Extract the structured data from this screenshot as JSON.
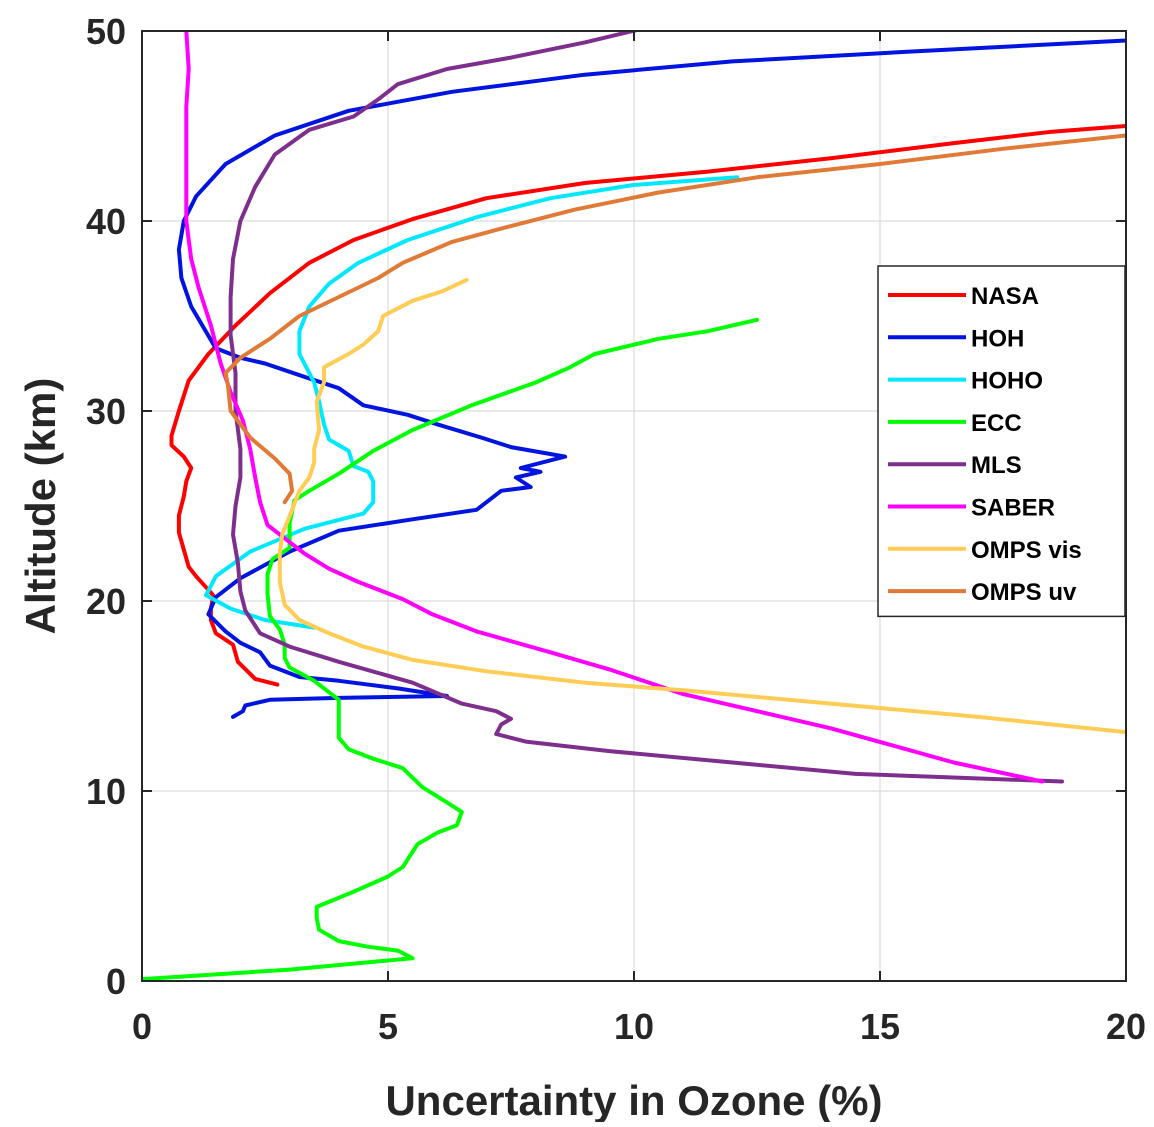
{
  "chart_data": {
    "type": "line",
    "xlabel": "Uncertainty in Ozone (%)",
    "ylabel": "Altitude (km)",
    "xlim": [
      0,
      20
    ],
    "ylim": [
      0,
      50
    ],
    "xticks": [
      0,
      5,
      10,
      15,
      20
    ],
    "yticks": [
      0,
      10,
      20,
      30,
      40,
      50
    ],
    "grid": true,
    "legend_position": "right",
    "series": [
      {
        "name": "NASA",
        "color": "#ff0000",
        "points": [
          [
            2.75,
            15.6
          ],
          [
            2.3,
            15.9
          ],
          [
            1.95,
            16.8
          ],
          [
            1.85,
            17.7
          ],
          [
            1.5,
            18.3
          ],
          [
            1.4,
            19.0
          ],
          [
            1.4,
            19.6
          ],
          [
            1.45,
            20.3
          ],
          [
            1.1,
            21.3
          ],
          [
            0.95,
            21.8
          ],
          [
            0.85,
            22.7
          ],
          [
            0.75,
            23.6
          ],
          [
            0.75,
            24.5
          ],
          [
            0.85,
            25.5
          ],
          [
            0.9,
            26.3
          ],
          [
            1.0,
            27.0
          ],
          [
            0.85,
            27.6
          ],
          [
            0.6,
            28.2
          ],
          [
            0.6,
            28.7
          ],
          [
            0.75,
            30.0
          ],
          [
            0.95,
            31.6
          ],
          [
            1.35,
            33.0
          ],
          [
            1.9,
            34.5
          ],
          [
            2.6,
            36.2
          ],
          [
            3.4,
            37.8
          ],
          [
            4.3,
            39.0
          ],
          [
            5.5,
            40.1
          ],
          [
            7.0,
            41.2
          ],
          [
            9.0,
            42.0
          ],
          [
            11.5,
            42.6
          ],
          [
            14.0,
            43.3
          ],
          [
            16.5,
            44.1
          ],
          [
            18.5,
            44.7
          ],
          [
            20.0,
            45.0
          ]
        ]
      },
      {
        "name": "HOH",
        "color": "#0014e0",
        "points": [
          [
            1.85,
            13.9
          ],
          [
            2.05,
            14.2
          ],
          [
            2.1,
            14.5
          ],
          [
            2.6,
            14.8
          ],
          [
            4.0,
            14.9
          ],
          [
            6.2,
            15.0
          ],
          [
            5.2,
            15.4
          ],
          [
            4.0,
            15.8
          ],
          [
            3.2,
            16.0
          ],
          [
            2.6,
            16.6
          ],
          [
            2.4,
            17.3
          ],
          [
            2.0,
            17.8
          ],
          [
            1.7,
            18.4
          ],
          [
            1.35,
            19.3
          ],
          [
            1.5,
            20.2
          ],
          [
            2.0,
            21.2
          ],
          [
            3.0,
            22.6
          ],
          [
            4.0,
            23.7
          ],
          [
            5.5,
            24.3
          ],
          [
            6.8,
            24.8
          ],
          [
            7.3,
            25.8
          ],
          [
            7.9,
            26.0
          ],
          [
            7.6,
            26.5
          ],
          [
            8.1,
            26.8
          ],
          [
            7.7,
            27.0
          ],
          [
            8.6,
            27.6
          ],
          [
            7.5,
            28.1
          ],
          [
            6.9,
            28.6
          ],
          [
            6.0,
            29.3
          ],
          [
            5.4,
            29.8
          ],
          [
            4.5,
            30.3
          ],
          [
            4.0,
            31.2
          ],
          [
            3.3,
            31.8
          ],
          [
            2.5,
            32.5
          ],
          [
            2.0,
            32.8
          ],
          [
            1.5,
            33.3
          ],
          [
            1.0,
            35.5
          ],
          [
            0.8,
            37.0
          ],
          [
            0.75,
            38.5
          ],
          [
            0.85,
            40.0
          ],
          [
            1.1,
            41.3
          ],
          [
            1.7,
            43.0
          ],
          [
            2.7,
            44.5
          ],
          [
            4.2,
            45.8
          ],
          [
            6.3,
            46.8
          ],
          [
            9.0,
            47.7
          ],
          [
            12.0,
            48.4
          ],
          [
            15.5,
            48.9
          ],
          [
            20.0,
            49.5
          ]
        ]
      },
      {
        "name": "HOHO",
        "color": "#00e8ff",
        "points": [
          [
            3.5,
            18.6
          ],
          [
            2.5,
            19.0
          ],
          [
            1.8,
            19.6
          ],
          [
            1.3,
            20.3
          ],
          [
            1.5,
            21.3
          ],
          [
            2.2,
            22.6
          ],
          [
            3.3,
            23.8
          ],
          [
            4.5,
            24.6
          ],
          [
            4.7,
            25.2
          ],
          [
            4.7,
            26.3
          ],
          [
            4.6,
            26.8
          ],
          [
            4.3,
            27.1
          ],
          [
            4.2,
            27.9
          ],
          [
            3.8,
            28.5
          ],
          [
            3.7,
            29.3
          ],
          [
            3.6,
            30.5
          ],
          [
            3.5,
            31.5
          ],
          [
            3.2,
            33.0
          ],
          [
            3.2,
            34.2
          ],
          [
            3.4,
            35.5
          ],
          [
            3.8,
            36.7
          ],
          [
            4.4,
            37.8
          ],
          [
            5.4,
            39.0
          ],
          [
            6.8,
            40.2
          ],
          [
            8.3,
            41.2
          ],
          [
            10.0,
            41.9
          ],
          [
            12.1,
            42.3
          ]
        ]
      },
      {
        "name": "ECC",
        "color": "#00ff00",
        "points": [
          [
            0.0,
            0.1
          ],
          [
            3.0,
            0.6
          ],
          [
            5.5,
            1.2
          ],
          [
            5.2,
            1.6
          ],
          [
            4.6,
            1.8
          ],
          [
            4.0,
            2.1
          ],
          [
            3.6,
            2.7
          ],
          [
            3.55,
            3.3
          ],
          [
            3.55,
            3.9
          ],
          [
            4.3,
            4.7
          ],
          [
            5.0,
            5.5
          ],
          [
            5.3,
            6.0
          ],
          [
            5.6,
            7.2
          ],
          [
            6.0,
            7.8
          ],
          [
            6.4,
            8.2
          ],
          [
            6.5,
            8.9
          ],
          [
            6.2,
            9.4
          ],
          [
            5.7,
            10.2
          ],
          [
            5.3,
            11.2
          ],
          [
            4.7,
            11.7
          ],
          [
            4.2,
            12.2
          ],
          [
            4.0,
            12.8
          ],
          [
            4.0,
            13.3
          ],
          [
            4.0,
            14.8
          ],
          [
            3.5,
            15.8
          ],
          [
            3.0,
            16.5
          ],
          [
            2.9,
            17.0
          ],
          [
            2.9,
            17.7
          ],
          [
            2.8,
            18.5
          ],
          [
            2.6,
            19.2
          ],
          [
            2.55,
            20.4
          ],
          [
            2.55,
            21.4
          ],
          [
            2.65,
            22.2
          ],
          [
            3.0,
            22.8
          ],
          [
            3.0,
            24.1
          ],
          [
            3.1,
            25.3
          ],
          [
            3.4,
            25.8
          ],
          [
            4.0,
            26.7
          ],
          [
            4.7,
            27.9
          ],
          [
            5.5,
            29.0
          ],
          [
            6.7,
            30.3
          ],
          [
            8.0,
            31.5
          ],
          [
            8.7,
            32.3
          ],
          [
            9.2,
            33.0
          ],
          [
            10.5,
            33.8
          ],
          [
            11.5,
            34.2
          ],
          [
            12.5,
            34.8
          ]
        ]
      },
      {
        "name": "MLS",
        "color": "#7e2f8e",
        "points": [
          [
            18.7,
            10.5
          ],
          [
            14.5,
            10.9
          ],
          [
            12.0,
            11.5
          ],
          [
            9.5,
            12.1
          ],
          [
            7.8,
            12.6
          ],
          [
            7.2,
            13.0
          ],
          [
            7.3,
            13.5
          ],
          [
            7.5,
            13.8
          ],
          [
            7.2,
            14.2
          ],
          [
            6.5,
            14.6
          ],
          [
            5.5,
            15.7
          ],
          [
            4.0,
            16.8
          ],
          [
            3.0,
            17.6
          ],
          [
            2.4,
            18.3
          ],
          [
            2.1,
            19.5
          ],
          [
            2.0,
            20.5
          ],
          [
            1.95,
            22.0
          ],
          [
            1.85,
            23.5
          ],
          [
            1.9,
            25.0
          ],
          [
            2.0,
            26.5
          ],
          [
            2.0,
            28.0
          ],
          [
            1.9,
            30.0
          ],
          [
            1.9,
            32.0
          ],
          [
            1.8,
            34.0
          ],
          [
            1.8,
            36.0
          ],
          [
            1.85,
            38.0
          ],
          [
            2.0,
            40.0
          ],
          [
            2.3,
            41.8
          ],
          [
            2.7,
            43.5
          ],
          [
            3.4,
            44.8
          ],
          [
            4.3,
            45.5
          ],
          [
            4.8,
            46.4
          ],
          [
            5.2,
            47.2
          ],
          [
            6.2,
            48.0
          ],
          [
            7.5,
            48.6
          ],
          [
            9.0,
            49.4
          ],
          [
            10.3,
            50.2
          ]
        ]
      },
      {
        "name": "SABER",
        "color": "#ff00ff",
        "points": [
          [
            18.3,
            10.5
          ],
          [
            16.5,
            11.5
          ],
          [
            14.0,
            13.3
          ],
          [
            11.0,
            15.1
          ],
          [
            9.5,
            16.4
          ],
          [
            8.3,
            17.3
          ],
          [
            6.8,
            18.4
          ],
          [
            5.9,
            19.3
          ],
          [
            5.3,
            20.1
          ],
          [
            4.4,
            21.0
          ],
          [
            3.8,
            21.7
          ],
          [
            3.3,
            22.5
          ],
          [
            2.9,
            23.3
          ],
          [
            2.55,
            24.0
          ],
          [
            2.4,
            25.2
          ],
          [
            2.3,
            26.5
          ],
          [
            2.2,
            28.0
          ],
          [
            2.05,
            29.5
          ],
          [
            1.8,
            31.0
          ],
          [
            1.6,
            32.5
          ],
          [
            1.4,
            34.5
          ],
          [
            1.15,
            36.5
          ],
          [
            1.0,
            38.0
          ],
          [
            0.9,
            40.0
          ],
          [
            0.9,
            42.0
          ],
          [
            0.9,
            44.0
          ],
          [
            0.9,
            46.0
          ],
          [
            0.95,
            48.0
          ],
          [
            0.9,
            50.0
          ]
        ]
      },
      {
        "name": "OMPS vis",
        "color": "#ffcc55",
        "points": [
          [
            20.0,
            13.1
          ],
          [
            17.0,
            13.9
          ],
          [
            14.0,
            14.6
          ],
          [
            11.0,
            15.3
          ],
          [
            9.0,
            15.7
          ],
          [
            7.0,
            16.3
          ],
          [
            5.5,
            16.9
          ],
          [
            4.5,
            17.6
          ],
          [
            3.8,
            18.3
          ],
          [
            3.2,
            19.0
          ],
          [
            2.9,
            19.8
          ],
          [
            2.8,
            21.0
          ],
          [
            2.8,
            22.5
          ],
          [
            2.85,
            23.5
          ],
          [
            3.05,
            24.8
          ],
          [
            3.2,
            25.8
          ],
          [
            3.4,
            26.5
          ],
          [
            3.5,
            27.3
          ],
          [
            3.5,
            28.0
          ],
          [
            3.6,
            29.0
          ],
          [
            3.55,
            30.5
          ],
          [
            3.7,
            31.5
          ],
          [
            3.7,
            32.3
          ],
          [
            4.2,
            33.0
          ],
          [
            4.5,
            33.5
          ],
          [
            4.8,
            34.2
          ],
          [
            4.9,
            35.0
          ],
          [
            5.5,
            35.8
          ],
          [
            6.1,
            36.3
          ],
          [
            6.6,
            36.9
          ]
        ]
      },
      {
        "name": "OMPS uv",
        "color": "#e07a36",
        "points": [
          [
            2.9,
            25.2
          ],
          [
            3.05,
            25.8
          ],
          [
            3.0,
            26.7
          ],
          [
            2.7,
            27.5
          ],
          [
            2.2,
            28.6
          ],
          [
            1.8,
            30.0
          ],
          [
            1.75,
            31.3
          ],
          [
            1.7,
            32.0
          ],
          [
            2.0,
            32.8
          ],
          [
            2.6,
            33.8
          ],
          [
            3.2,
            35.0
          ],
          [
            4.0,
            36.0
          ],
          [
            4.8,
            37.0
          ],
          [
            5.3,
            37.8
          ],
          [
            6.3,
            38.9
          ],
          [
            7.3,
            39.6
          ],
          [
            8.8,
            40.6
          ],
          [
            10.5,
            41.5
          ],
          [
            12.5,
            42.3
          ],
          [
            15.0,
            43.0
          ],
          [
            17.5,
            43.8
          ],
          [
            20.0,
            44.5
          ]
        ]
      }
    ]
  }
}
